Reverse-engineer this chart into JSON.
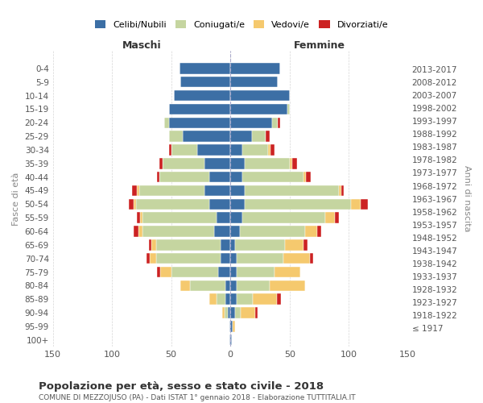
{
  "age_groups": [
    "100+",
    "95-99",
    "90-94",
    "85-89",
    "80-84",
    "75-79",
    "70-74",
    "65-69",
    "60-64",
    "55-59",
    "50-54",
    "45-49",
    "40-44",
    "35-39",
    "30-34",
    "25-29",
    "20-24",
    "15-19",
    "10-14",
    "5-9",
    "0-4"
  ],
  "birth_years": [
    "≤ 1917",
    "1918-1922",
    "1923-1927",
    "1928-1932",
    "1933-1937",
    "1938-1942",
    "1943-1947",
    "1948-1952",
    "1953-1957",
    "1958-1962",
    "1963-1967",
    "1968-1972",
    "1973-1977",
    "1978-1982",
    "1983-1987",
    "1988-1992",
    "1993-1997",
    "1998-2002",
    "2003-2007",
    "2008-2012",
    "2013-2017"
  ],
  "male": {
    "single": [
      1,
      1,
      2,
      4,
      4,
      10,
      8,
      8,
      14,
      12,
      18,
      22,
      18,
      22,
      28,
      40,
      52,
      52,
      48,
      42,
      43
    ],
    "married": [
      0,
      0,
      3,
      8,
      30,
      40,
      55,
      55,
      60,
      62,
      62,
      55,
      42,
      35,
      22,
      12,
      4,
      0,
      0,
      0,
      0
    ],
    "widowed": [
      0,
      0,
      2,
      6,
      8,
      9,
      5,
      4,
      4,
      2,
      2,
      2,
      0,
      0,
      0,
      0,
      0,
      0,
      0,
      0,
      0
    ],
    "divorced": [
      0,
      0,
      0,
      0,
      0,
      3,
      3,
      2,
      4,
      3,
      4,
      4,
      2,
      3,
      2,
      0,
      0,
      0,
      0,
      0,
      0
    ]
  },
  "female": {
    "single": [
      1,
      2,
      4,
      5,
      5,
      5,
      5,
      4,
      8,
      10,
      12,
      12,
      10,
      12,
      10,
      18,
      35,
      48,
      50,
      40,
      42
    ],
    "married": [
      0,
      0,
      5,
      14,
      28,
      32,
      40,
      42,
      55,
      70,
      90,
      80,
      52,
      38,
      22,
      12,
      5,
      2,
      0,
      0,
      0
    ],
    "widowed": [
      0,
      2,
      12,
      20,
      30,
      22,
      22,
      16,
      10,
      8,
      8,
      2,
      2,
      2,
      2,
      0,
      0,
      0,
      0,
      0,
      0
    ],
    "divorced": [
      0,
      0,
      2,
      4,
      0,
      0,
      3,
      3,
      4,
      4,
      6,
      2,
      4,
      4,
      3,
      3,
      2,
      0,
      0,
      0,
      0
    ]
  },
  "colors": {
    "single": "#3c6fa5",
    "married": "#c5d5a0",
    "widowed": "#f5c96e",
    "divorced": "#cc2222"
  },
  "legend_labels": [
    "Celibi/Nubili",
    "Coniugati/e",
    "Vedovi/e",
    "Divorziati/e"
  ],
  "title": "Popolazione per età, sesso e stato civile - 2018",
  "subtitle": "COMUNE DI MEZZOJUSO (PA) - Dati ISTAT 1° gennaio 2018 - Elaborazione TUTTITALIA.IT",
  "ylabel": "Fasce di età",
  "ylabel2": "Anni di nascita",
  "xlabel_left": "Maschi",
  "xlabel_right": "Femmine",
  "xlim": 150,
  "bg_color": "#ffffff",
  "grid_color": "#cccccc"
}
